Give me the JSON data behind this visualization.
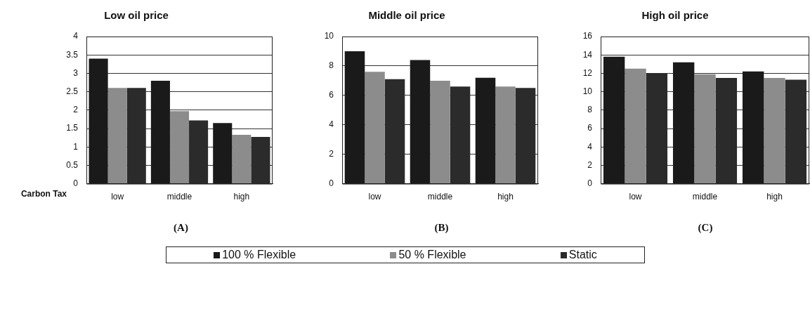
{
  "chart_data": [
    {
      "type": "bar",
      "title": "Low oil price",
      "xlabel": "Carbon Tax",
      "categories": [
        "low",
        "middle",
        "high"
      ],
      "series": [
        {
          "name": "100 % Flexible",
          "color": "#1a1a1a",
          "values": [
            3.4,
            2.8,
            1.65
          ]
        },
        {
          "name": "50 % Flexible",
          "color": "#8c8c8c",
          "values": [
            2.6,
            1.97,
            1.33
          ]
        },
        {
          "name": "Static",
          "color": "#2b2b2b",
          "values": [
            2.6,
            1.72,
            1.27
          ]
        }
      ],
      "ylim": [
        0,
        4
      ],
      "yticks": [
        0,
        0.5,
        1,
        1.5,
        2,
        2.5,
        3,
        3.5,
        4
      ],
      "grid": "y",
      "legend": "bottom",
      "annotations": [
        "(A)"
      ]
    },
    {
      "type": "bar",
      "title": "Middle oil price",
      "categories": [
        "low",
        "middle",
        "high"
      ],
      "series": [
        {
          "color": "#1a1a1a",
          "values": [
            9.0,
            8.4,
            7.2
          ]
        },
        {
          "color": "#8c8c8c",
          "values": [
            7.6,
            7.0,
            6.6
          ]
        },
        {
          "color": "#2b2b2b",
          "values": [
            7.1,
            6.6,
            6.5
          ]
        }
      ],
      "ylim": [
        0,
        10
      ],
      "yticks": [
        0,
        2,
        4,
        6,
        8,
        10
      ],
      "grid": "y",
      "annotations": [
        "(B)"
      ]
    },
    {
      "type": "bar",
      "title": "High oil price",
      "categories": [
        "low",
        "middle",
        "high"
      ],
      "series": [
        {
          "color": "#1a1a1a",
          "values": [
            13.8,
            13.2,
            12.2
          ]
        },
        {
          "color": "#8c8c8c",
          "values": [
            12.5,
            11.9,
            11.5
          ]
        },
        {
          "color": "#2b2b2b",
          "values": [
            12.0,
            11.5,
            11.3
          ]
        }
      ],
      "ylim": [
        0,
        16
      ],
      "yticks": [
        0,
        2,
        4,
        6,
        8,
        10,
        12,
        14,
        16
      ],
      "grid": "y",
      "annotations": [
        "(C)"
      ]
    }
  ]
}
